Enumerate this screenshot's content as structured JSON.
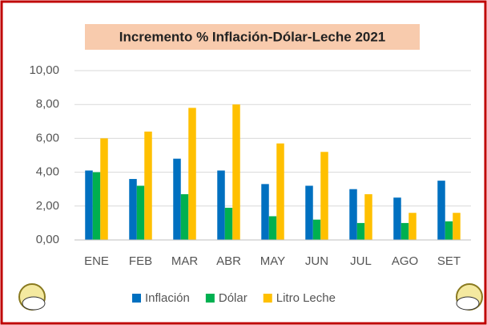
{
  "chart_data": {
    "type": "bar",
    "title": "Incremento % Inflación-Dólar-Leche 2021",
    "categories": [
      "ENE",
      "FEB",
      "MAR",
      "ABR",
      "MAY",
      "JUN",
      "JUL",
      "AGO",
      "SET"
    ],
    "series": [
      {
        "name": "Inflación",
        "color": "#0070c0",
        "values": [
          4.1,
          3.6,
          4.8,
          4.1,
          3.3,
          3.2,
          3.0,
          2.5,
          3.5
        ]
      },
      {
        "name": "Dólar",
        "color": "#00b050",
        "values": [
          4.0,
          3.2,
          2.7,
          1.9,
          1.4,
          1.2,
          1.0,
          1.0,
          1.1
        ]
      },
      {
        "name": "Litro Leche",
        "color": "#ffc000",
        "values": [
          6.0,
          6.4,
          7.8,
          8.0,
          5.7,
          5.2,
          2.7,
          1.6,
          1.6
        ]
      }
    ],
    "ylim": [
      0,
      10
    ],
    "yticks": [
      {
        "value": 0,
        "label": "0,00"
      },
      {
        "value": 2,
        "label": "2,00"
      },
      {
        "value": 4,
        "label": "4,00"
      },
      {
        "value": 6,
        "label": "6,00"
      },
      {
        "value": 8,
        "label": "8,00"
      },
      {
        "value": 10,
        "label": "10,00"
      }
    ],
    "grid": true,
    "legend": "bottom"
  }
}
